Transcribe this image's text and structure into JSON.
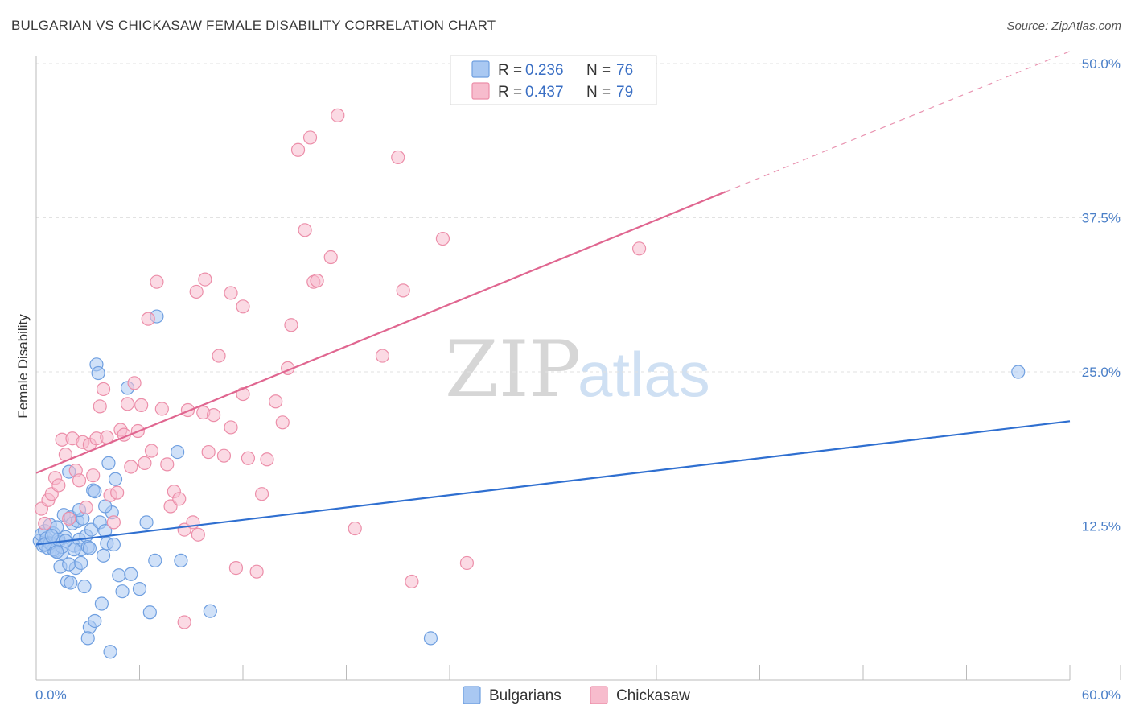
{
  "title": "BULGARIAN VS CHICKASAW FEMALE DISABILITY CORRELATION CHART",
  "source": "Source: ZipAtlas.com",
  "watermark": {
    "zip": "ZIP",
    "atlas": "atlas"
  },
  "legend": {
    "r_label": "R =",
    "n_label": "N =",
    "entries": [
      {
        "name": "Bulgarians",
        "r": "0.236",
        "n": "76",
        "fill": "#a9c8f2",
        "stroke": "#6f9fe0"
      },
      {
        "name": "Chickasaw",
        "r": "0.437",
        "n": "79",
        "fill": "#f7bccd",
        "stroke": "#ec8ea9"
      }
    ]
  },
  "chart_data": {
    "type": "scatter",
    "title": "BULGARIAN VS CHICKASAW FEMALE DISABILITY CORRELATION CHART",
    "xlabel": "",
    "ylabel": "Female Disability",
    "xlim": [
      0,
      60
    ],
    "ylim": [
      0,
      50
    ],
    "x_tick_labels": [
      "0.0%",
      "60.0%"
    ],
    "y_ticks": [
      12.5,
      25.0,
      37.5,
      50.0
    ],
    "y_tick_labels": [
      "12.5%",
      "25.0%",
      "37.5%",
      "50.0%"
    ],
    "grid": true,
    "legend_position": "top-center",
    "series": [
      {
        "name": "Bulgarians",
        "color": "#2f6fd0",
        "marker_fill": "#a9c8f2",
        "marker_stroke": "#6f9fe0",
        "trend": {
          "x": [
            0,
            60
          ],
          "y": [
            11.0,
            21.0
          ],
          "dashed_from": null
        },
        "points": [
          [
            0.2,
            11.3
          ],
          [
            0.3,
            11.8
          ],
          [
            0.4,
            10.9
          ],
          [
            0.5,
            12.1
          ],
          [
            0.6,
            11.5
          ],
          [
            0.7,
            10.7
          ],
          [
            0.8,
            12.6
          ],
          [
            0.9,
            11.0
          ],
          [
            1.0,
            11.9
          ],
          [
            1.1,
            10.5
          ],
          [
            1.2,
            12.4
          ],
          [
            1.3,
            11.2
          ],
          [
            1.4,
            9.2
          ],
          [
            1.5,
            10.3
          ],
          [
            1.6,
            13.4
          ],
          [
            1.7,
            11.6
          ],
          [
            1.8,
            8.0
          ],
          [
            1.9,
            16.9
          ],
          [
            2.0,
            13.2
          ],
          [
            2.1,
            12.7
          ],
          [
            2.2,
            10.9
          ],
          [
            2.3,
            9.1
          ],
          [
            2.4,
            12.9
          ],
          [
            2.5,
            11.4
          ],
          [
            2.6,
            10.6
          ],
          [
            2.7,
            13.1
          ],
          [
            2.8,
            7.6
          ],
          [
            2.9,
            11.7
          ],
          [
            3.0,
            10.8
          ],
          [
            3.1,
            4.3
          ],
          [
            3.2,
            12.2
          ],
          [
            3.3,
            15.4
          ],
          [
            3.4,
            15.3
          ],
          [
            3.5,
            25.6
          ],
          [
            3.6,
            24.9
          ],
          [
            3.7,
            12.8
          ],
          [
            3.8,
            6.2
          ],
          [
            3.9,
            10.1
          ],
          [
            4.0,
            12.1
          ],
          [
            4.1,
            11.1
          ],
          [
            4.2,
            17.6
          ],
          [
            4.3,
            2.3
          ],
          [
            4.4,
            13.6
          ],
          [
            4.5,
            11.0
          ],
          [
            4.6,
            16.3
          ],
          [
            4.0,
            14.1
          ],
          [
            4.8,
            8.5
          ],
          [
            5.0,
            7.2
          ],
          [
            5.3,
            23.7
          ],
          [
            5.5,
            8.6
          ],
          [
            6.0,
            7.4
          ],
          [
            6.4,
            12.8
          ],
          [
            6.9,
            9.7
          ],
          [
            7.0,
            29.5
          ],
          [
            6.6,
            5.5
          ],
          [
            8.2,
            18.5
          ],
          [
            8.4,
            9.7
          ],
          [
            10.1,
            5.6
          ],
          [
            22.9,
            3.4
          ],
          [
            57.0,
            25.0
          ],
          [
            2.0,
            7.9
          ],
          [
            1.0,
            10.6
          ],
          [
            3.0,
            3.4
          ],
          [
            1.5,
            10.8
          ],
          [
            2.5,
            13.8
          ],
          [
            0.8,
            11.1
          ],
          [
            1.3,
            11.4
          ],
          [
            1.9,
            9.4
          ],
          [
            2.6,
            9.5
          ],
          [
            3.4,
            4.8
          ],
          [
            0.5,
            11.0
          ],
          [
            1.2,
            10.4
          ],
          [
            2.2,
            10.6
          ],
          [
            3.1,
            10.7
          ],
          [
            0.9,
            11.7
          ],
          [
            1.7,
            11.3
          ]
        ]
      },
      {
        "name": "Chickasaw",
        "color": "#e06690",
        "marker_fill": "#f7bccd",
        "marker_stroke": "#ec8ea9",
        "trend": {
          "x": [
            0,
            60
          ],
          "y": [
            16.8,
            51.0
          ],
          "dashed_from": 40
        },
        "points": [
          [
            0.3,
            13.9
          ],
          [
            0.5,
            12.7
          ],
          [
            0.7,
            14.6
          ],
          [
            0.9,
            15.1
          ],
          [
            1.1,
            16.4
          ],
          [
            1.3,
            15.8
          ],
          [
            1.5,
            19.5
          ],
          [
            1.7,
            18.3
          ],
          [
            1.9,
            13.1
          ],
          [
            2.1,
            19.6
          ],
          [
            2.3,
            17.0
          ],
          [
            2.5,
            16.2
          ],
          [
            2.7,
            19.3
          ],
          [
            2.9,
            14.0
          ],
          [
            3.1,
            19.1
          ],
          [
            3.3,
            16.6
          ],
          [
            3.5,
            19.6
          ],
          [
            3.7,
            22.2
          ],
          [
            3.9,
            23.6
          ],
          [
            4.1,
            19.7
          ],
          [
            4.3,
            15.0
          ],
          [
            4.5,
            12.8
          ],
          [
            4.7,
            15.2
          ],
          [
            4.9,
            20.3
          ],
          [
            5.1,
            19.9
          ],
          [
            5.3,
            22.4
          ],
          [
            5.5,
            17.3
          ],
          [
            5.7,
            24.1
          ],
          [
            5.9,
            20.2
          ],
          [
            6.1,
            22.3
          ],
          [
            6.3,
            17.6
          ],
          [
            6.5,
            29.3
          ],
          [
            6.7,
            18.6
          ],
          [
            7.0,
            32.3
          ],
          [
            7.3,
            22.0
          ],
          [
            7.6,
            17.5
          ],
          [
            7.8,
            14.1
          ],
          [
            8.0,
            15.3
          ],
          [
            8.3,
            14.7
          ],
          [
            8.6,
            12.2
          ],
          [
            8.8,
            21.9
          ],
          [
            9.1,
            12.8
          ],
          [
            9.4,
            11.8
          ],
          [
            9.7,
            21.7
          ],
          [
            10.0,
            18.5
          ],
          [
            10.3,
            21.5
          ],
          [
            10.6,
            26.3
          ],
          [
            10.9,
            18.2
          ],
          [
            11.3,
            20.5
          ],
          [
            11.6,
            9.1
          ],
          [
            12.0,
            23.2
          ],
          [
            12.3,
            18.0
          ],
          [
            12.8,
            8.8
          ],
          [
            13.1,
            15.1
          ],
          [
            13.4,
            17.9
          ],
          [
            13.9,
            22.6
          ],
          [
            14.3,
            20.9
          ],
          [
            14.6,
            25.3
          ],
          [
            14.8,
            28.8
          ],
          [
            15.2,
            43.0
          ],
          [
            15.6,
            36.5
          ],
          [
            15.9,
            44.0
          ],
          [
            16.1,
            32.3
          ],
          [
            16.3,
            32.4
          ],
          [
            17.1,
            34.3
          ],
          [
            17.5,
            45.8
          ],
          [
            9.3,
            31.5
          ],
          [
            9.8,
            32.5
          ],
          [
            11.3,
            31.4
          ],
          [
            12.0,
            30.3
          ],
          [
            18.5,
            12.3
          ],
          [
            20.1,
            26.3
          ],
          [
            21.0,
            42.4
          ],
          [
            21.3,
            31.6
          ],
          [
            21.8,
            8.0
          ],
          [
            23.6,
            35.8
          ],
          [
            25.0,
            9.5
          ],
          [
            35.0,
            35.0
          ],
          [
            8.6,
            4.7
          ]
        ]
      }
    ]
  }
}
